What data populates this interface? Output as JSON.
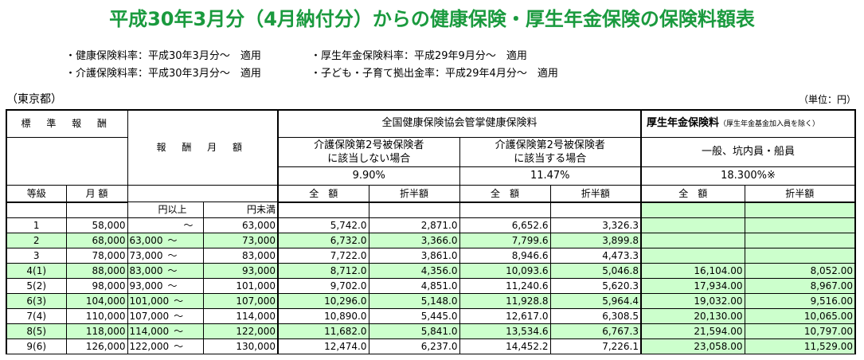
{
  "title": "平成30年3月分（4月納付分）からの健康保険・厚生年金保険の保険料額表",
  "notes": [
    {
      "left": "・健康保険料率：平成30年3月分～　適用",
      "right": "・厚生年金保険料率：平成29年9月分～　適用"
    },
    {
      "left": "・介護保険料率：平成30年3月分～　適用",
      "right": "・子ども・子育て拠出金率：平成29年4月分～　適用"
    }
  ],
  "region": "（東京都）",
  "unit": "（単位：円）",
  "header": {
    "standard": "標 準 報 酬",
    "grade": "等級",
    "monthly": "月 額",
    "reward_monthly": "報 酬 月 額",
    "yen_min": "円以上",
    "yen_max": "円未満",
    "kenpo": "全国健康保険協会管掌健康保険料",
    "kousei": "厚生年金保険料",
    "kousei_note": "（厚生年金基金加入員を除く）",
    "not_kaigo": "介護保険第2号被保険者\nに該当しない場合",
    "not_kaigo_1": "介護保険第2号被保険者",
    "not_kaigo_2": "に該当しない場合",
    "kaigo_1": "介護保険第2号被保険者",
    "kaigo_2": "に該当する場合",
    "general": "一般、坑内員・船員",
    "rate1": "9.90%",
    "rate2": "11.47%",
    "rate3": "18.300%※",
    "full": "全　額",
    "half": "折半額"
  },
  "rows": [
    {
      "grade": "1",
      "monthly": "58,000",
      "from": "",
      "to": "63,000",
      "h_full": "5,742.0",
      "h_half": "2,871.0",
      "k_full": "6,652.6",
      "k_half": "3,326.3",
      "p_full": "",
      "p_half": "",
      "green": false
    },
    {
      "grade": "2",
      "monthly": "68,000",
      "from": "63,000",
      "to": "73,000",
      "h_full": "6,732.0",
      "h_half": "3,366.0",
      "k_full": "7,799.6",
      "k_half": "3,899.8",
      "p_full": "",
      "p_half": "",
      "green": true
    },
    {
      "grade": "3",
      "monthly": "78,000",
      "from": "73,000",
      "to": "83,000",
      "h_full": "7,722.0",
      "h_half": "3,861.0",
      "k_full": "8,946.6",
      "k_half": "4,473.3",
      "p_full": "",
      "p_half": "",
      "green": false
    },
    {
      "grade": "4(1)",
      "monthly": "88,000",
      "from": "83,000",
      "to": "93,000",
      "h_full": "8,712.0",
      "h_half": "4,356.0",
      "k_full": "10,093.6",
      "k_half": "5,046.8",
      "p_full": "16,104.00",
      "p_half": "8,052.00",
      "green": true
    },
    {
      "grade": "5(2)",
      "monthly": "98,000",
      "from": "93,000",
      "to": "101,000",
      "h_full": "9,702.0",
      "h_half": "4,851.0",
      "k_full": "11,240.6",
      "k_half": "5,620.3",
      "p_full": "17,934.00",
      "p_half": "8,967.00",
      "green": false
    },
    {
      "grade": "6(3)",
      "monthly": "104,000",
      "from": "101,000",
      "to": "107,000",
      "h_full": "10,296.0",
      "h_half": "5,148.0",
      "k_full": "11,928.8",
      "k_half": "5,964.4",
      "p_full": "19,032.00",
      "p_half": "9,516.00",
      "green": true
    },
    {
      "grade": "7(4)",
      "monthly": "110,000",
      "from": "107,000",
      "to": "114,000",
      "h_full": "10,890.0",
      "h_half": "5,445.0",
      "k_full": "12,617.0",
      "k_half": "6,308.5",
      "p_full": "20,130.00",
      "p_half": "10,065.00",
      "green": false
    },
    {
      "grade": "8(5)",
      "monthly": "118,000",
      "from": "114,000",
      "to": "122,000",
      "h_full": "11,682.0",
      "h_half": "5,841.0",
      "k_full": "13,534.6",
      "k_half": "6,767.3",
      "p_full": "21,594.00",
      "p_half": "10,797.00",
      "green": true
    },
    {
      "grade": "9(6)",
      "monthly": "126,000",
      "from": "122,000",
      "to": "130,000",
      "h_full": "12,474.0",
      "h_half": "6,237.0",
      "k_full": "14,452.2",
      "k_half": "7,226.1",
      "p_full": "23,058.00",
      "p_half": "11,529.00",
      "green": false
    }
  ],
  "tilde": "～",
  "colors": {
    "title": "#1a9a3e",
    "row_highlight": "#ccffcc"
  }
}
